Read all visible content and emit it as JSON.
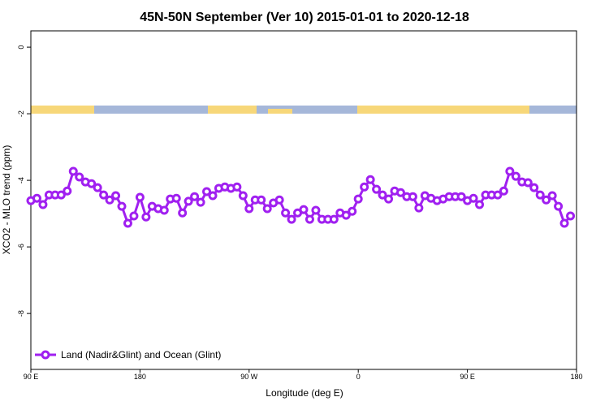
{
  "chart_data": {
    "type": "line",
    "title": "45N-50N September (Ver 10)   2015-01-01 to 2020-12-18",
    "xlabel": "Longitude (deg E)",
    "ylabel": "XCO2 - MLO trend (ppm)",
    "x": [
      90,
      95,
      100,
      105,
      110,
      115,
      120,
      125,
      130,
      135,
      140,
      145,
      150,
      155,
      160,
      165,
      170,
      175,
      180,
      185,
      190,
      195,
      200,
      205,
      210,
      215,
      220,
      225,
      230,
      235,
      240,
      245,
      250,
      255,
      260,
      265,
      270,
      275,
      280,
      285,
      290,
      295,
      300,
      305,
      310,
      315,
      320,
      325,
      330,
      335,
      340,
      345,
      350,
      355,
      360,
      365,
      370,
      375,
      380,
      385,
      390,
      395,
      400,
      405,
      410,
      415,
      420,
      425,
      430,
      435,
      440,
      445,
      450,
      455,
      460,
      465,
      470,
      475,
      480,
      485,
      490,
      495,
      500,
      505,
      510,
      515,
      520,
      525,
      530,
      535
    ],
    "series": [
      {
        "name": "Land (Nadir&Glint) and Ocean (Glint)",
        "color": "#a020f0",
        "values": [
          -4.61,
          -4.54,
          -4.73,
          -4.44,
          -4.44,
          -4.44,
          -4.32,
          -3.73,
          -3.9,
          -4.05,
          -4.1,
          -4.22,
          -4.44,
          -4.59,
          -4.46,
          -4.78,
          -5.29,
          -5.07,
          -4.51,
          -5.1,
          -4.78,
          -4.85,
          -4.9,
          -4.56,
          -4.54,
          -4.98,
          -4.63,
          -4.49,
          -4.66,
          -4.34,
          -4.46,
          -4.24,
          -4.2,
          -4.24,
          -4.2,
          -4.46,
          -4.85,
          -4.59,
          -4.59,
          -4.85,
          -4.68,
          -4.59,
          -4.98,
          -5.17,
          -4.98,
          -4.88,
          -5.17,
          -4.9,
          -5.17,
          -5.17,
          -5.17,
          -4.98,
          -5.05,
          -4.93,
          -4.56,
          -4.2,
          -3.98,
          -4.27,
          -4.44,
          -4.56,
          -4.32,
          -4.37,
          -4.49,
          -4.49,
          -4.83,
          -4.46,
          -4.54,
          -4.61,
          -4.56,
          -4.49,
          -4.49,
          -4.49,
          -4.61,
          -4.54,
          -4.73,
          -4.44,
          -4.44,
          -4.44,
          -4.32,
          -3.73,
          -3.88,
          -4.05,
          -4.07,
          -4.22,
          -4.44,
          -4.59,
          -4.46,
          -4.78,
          -5.29,
          -5.07
        ]
      }
    ],
    "xlim": [
      90,
      540
    ],
    "xticks": [
      {
        "value": 90,
        "label": "90 E"
      },
      {
        "value": 180,
        "label": "180"
      },
      {
        "value": 270,
        "label": "90 W"
      },
      {
        "value": 360,
        "label": "0"
      },
      {
        "value": 450,
        "label": "90 E"
      },
      {
        "value": 540,
        "label": "180"
      }
    ],
    "ylim": [
      -9.68,
      0.49
    ],
    "yticks": [
      0,
      -2,
      -4,
      -6,
      -8
    ],
    "grid": false,
    "legend": "bottom-left"
  }
}
